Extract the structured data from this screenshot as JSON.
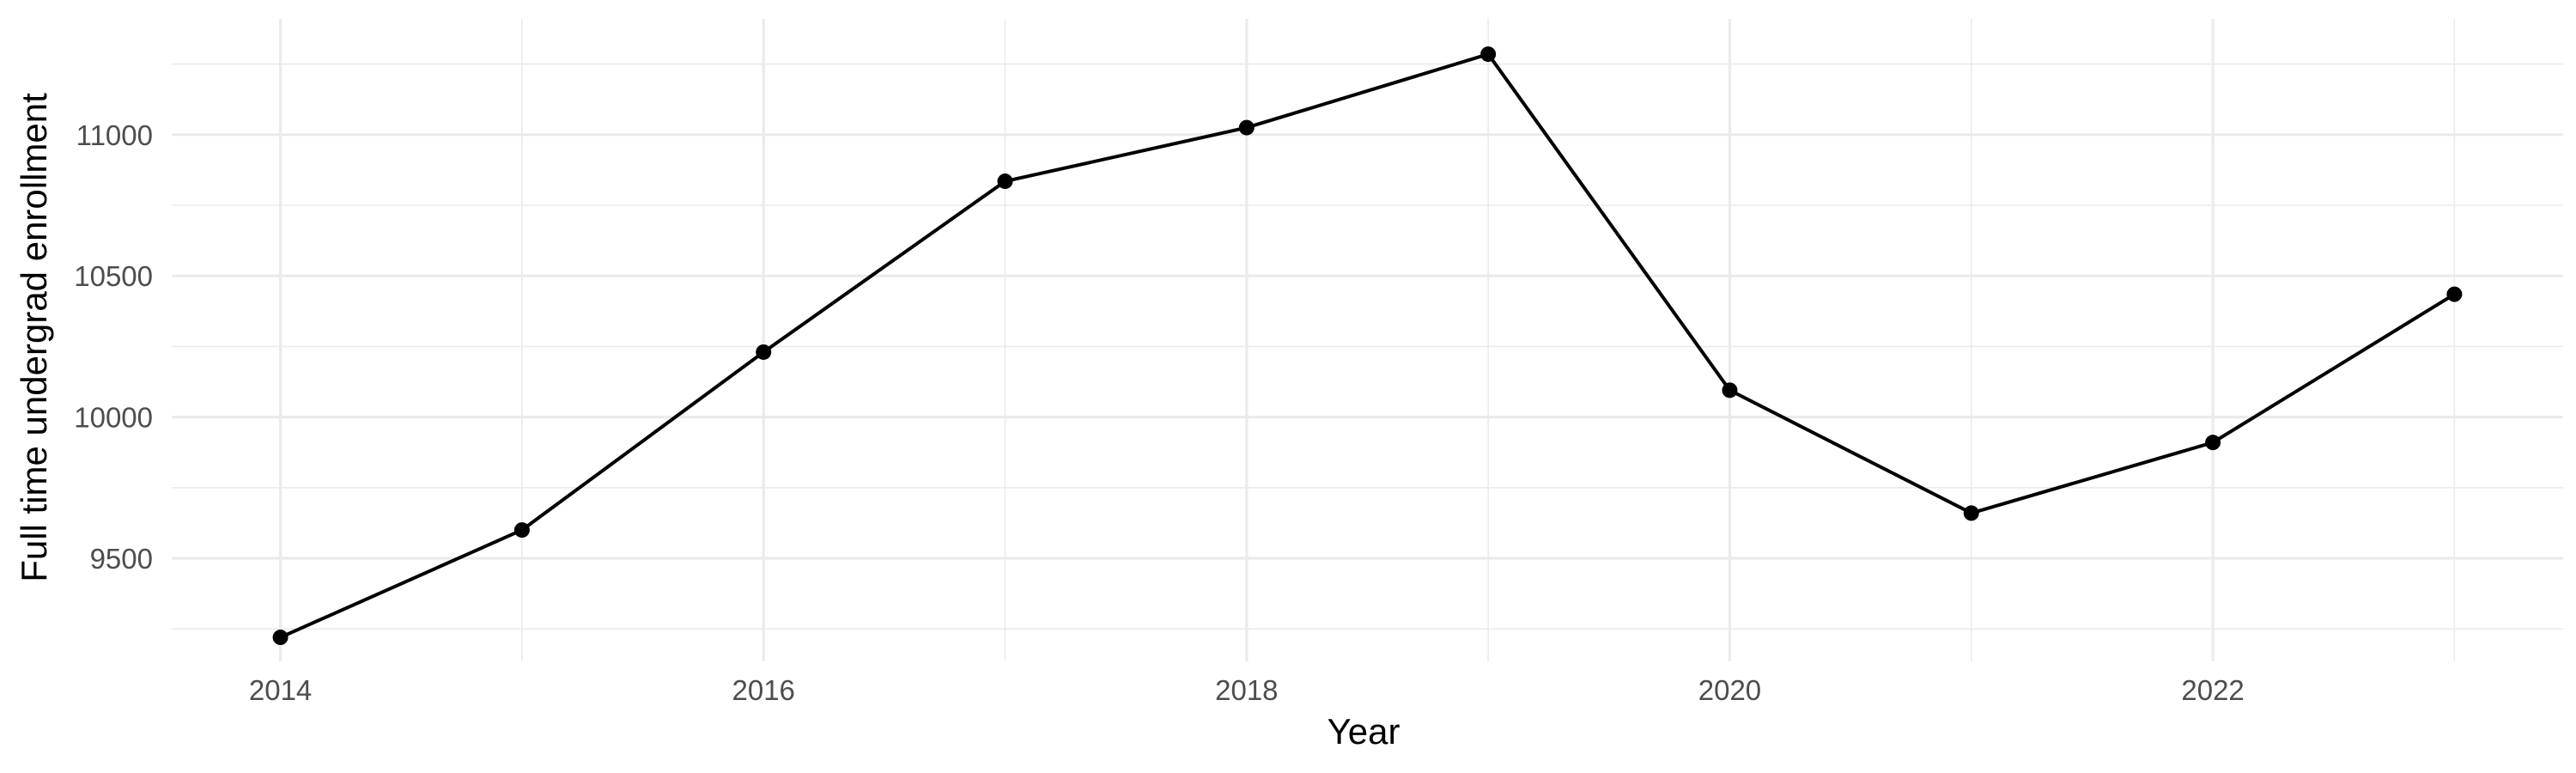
{
  "chart_data": {
    "type": "line",
    "title": "",
    "xlabel": "Year",
    "ylabel": "Full time undergrad enrollment",
    "xlim": [
      2013.55,
      2023.45
    ],
    "ylim": [
      9135,
      11410
    ],
    "x_ticks": [
      2014,
      2016,
      2018,
      2020,
      2022
    ],
    "y_ticks": [
      9500,
      10000,
      10500,
      11000
    ],
    "grid": true,
    "legend": "none",
    "line_color": "#000000",
    "grid_color": "#ebebeb",
    "series": [
      {
        "x": [
          2014,
          2015,
          2016,
          2017,
          2018,
          2019,
          2020,
          2021,
          2022,
          2023
        ],
        "values": [
          9220,
          9600,
          10230,
          10835,
          11025,
          11285,
          10095,
          9660,
          9910,
          10435
        ]
      }
    ]
  }
}
